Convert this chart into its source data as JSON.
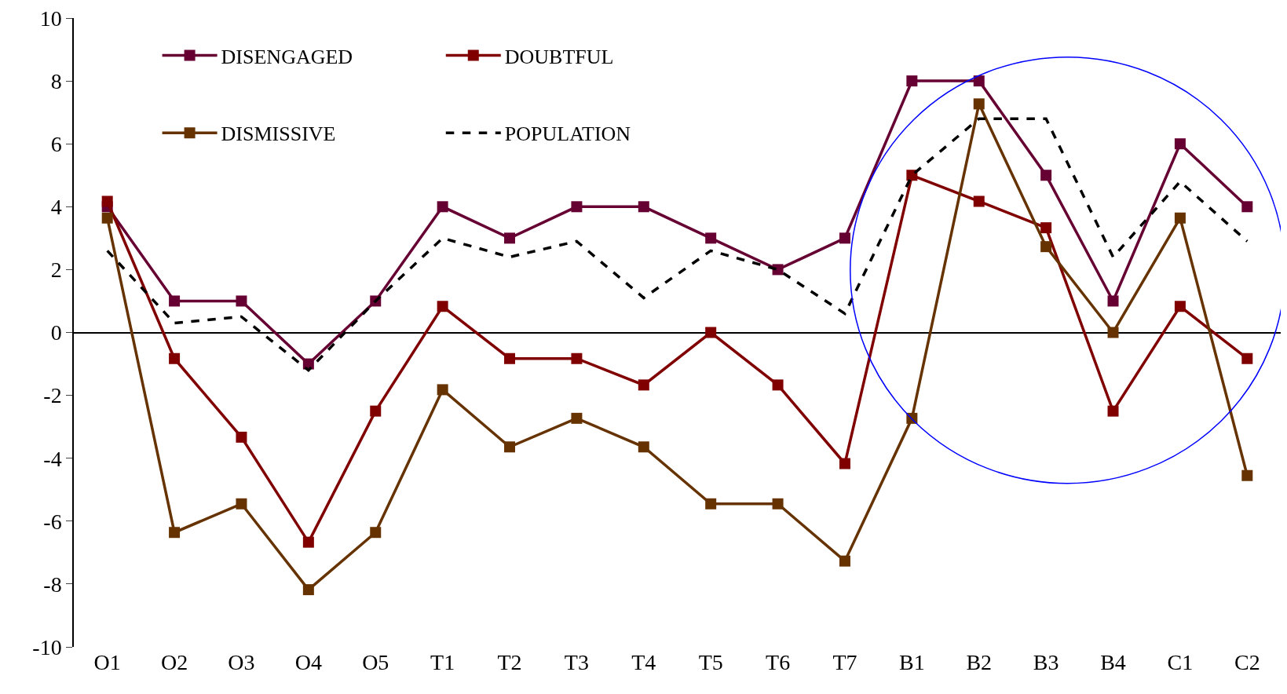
{
  "chart_data": {
    "type": "line",
    "categories": [
      "O1",
      "O2",
      "O3",
      "O4",
      "O5",
      "T1",
      "T2",
      "T3",
      "T4",
      "T5",
      "T6",
      "T7",
      "B1",
      "B2",
      "B3",
      "B4",
      "C1",
      "C2"
    ],
    "series": [
      {
        "name": "DISENGAGED",
        "color": "#660033",
        "values": [
          4,
          1,
          1,
          -1,
          1,
          4,
          3,
          4,
          4,
          3,
          2,
          3,
          8,
          8,
          5,
          1,
          6,
          4
        ]
      },
      {
        "name": "DOUBTFUL",
        "color": "#800000",
        "values": [
          4.17,
          -0.83,
          -3.33,
          -6.67,
          -2.5,
          0.83,
          -0.83,
          -0.83,
          -1.67,
          0,
          -1.67,
          -4.17,
          5,
          4.17,
          3.33,
          -2.5,
          0.83,
          -0.83
        ]
      },
      {
        "name": "DISMISSIVE",
        "color": "#663300",
        "values": [
          3.64,
          -6.36,
          -5.45,
          -8.18,
          -6.36,
          -1.82,
          -3.64,
          -2.73,
          -3.64,
          -5.45,
          -5.45,
          -7.27,
          -2.73,
          7.27,
          2.73,
          0,
          3.64,
          -4.55
        ]
      },
      {
        "name": "POPULATION",
        "color": "#000000",
        "marker": "none",
        "line_style": "dashed",
        "values": [
          2.6,
          0.3,
          0.5,
          -1.2,
          1.0,
          3.0,
          2.4,
          2.9,
          1.1,
          2.6,
          2.0,
          0.6,
          5.0,
          6.8,
          6.8,
          2.4,
          4.8,
          2.9
        ]
      }
    ],
    "marker": "square",
    "line_style": "solid",
    "ylim": [
      -10,
      10
    ],
    "yticks": [
      -10,
      -8,
      -6,
      -4,
      -2,
      0,
      2,
      4,
      6,
      8,
      10
    ],
    "legend": "top left"
  }
}
